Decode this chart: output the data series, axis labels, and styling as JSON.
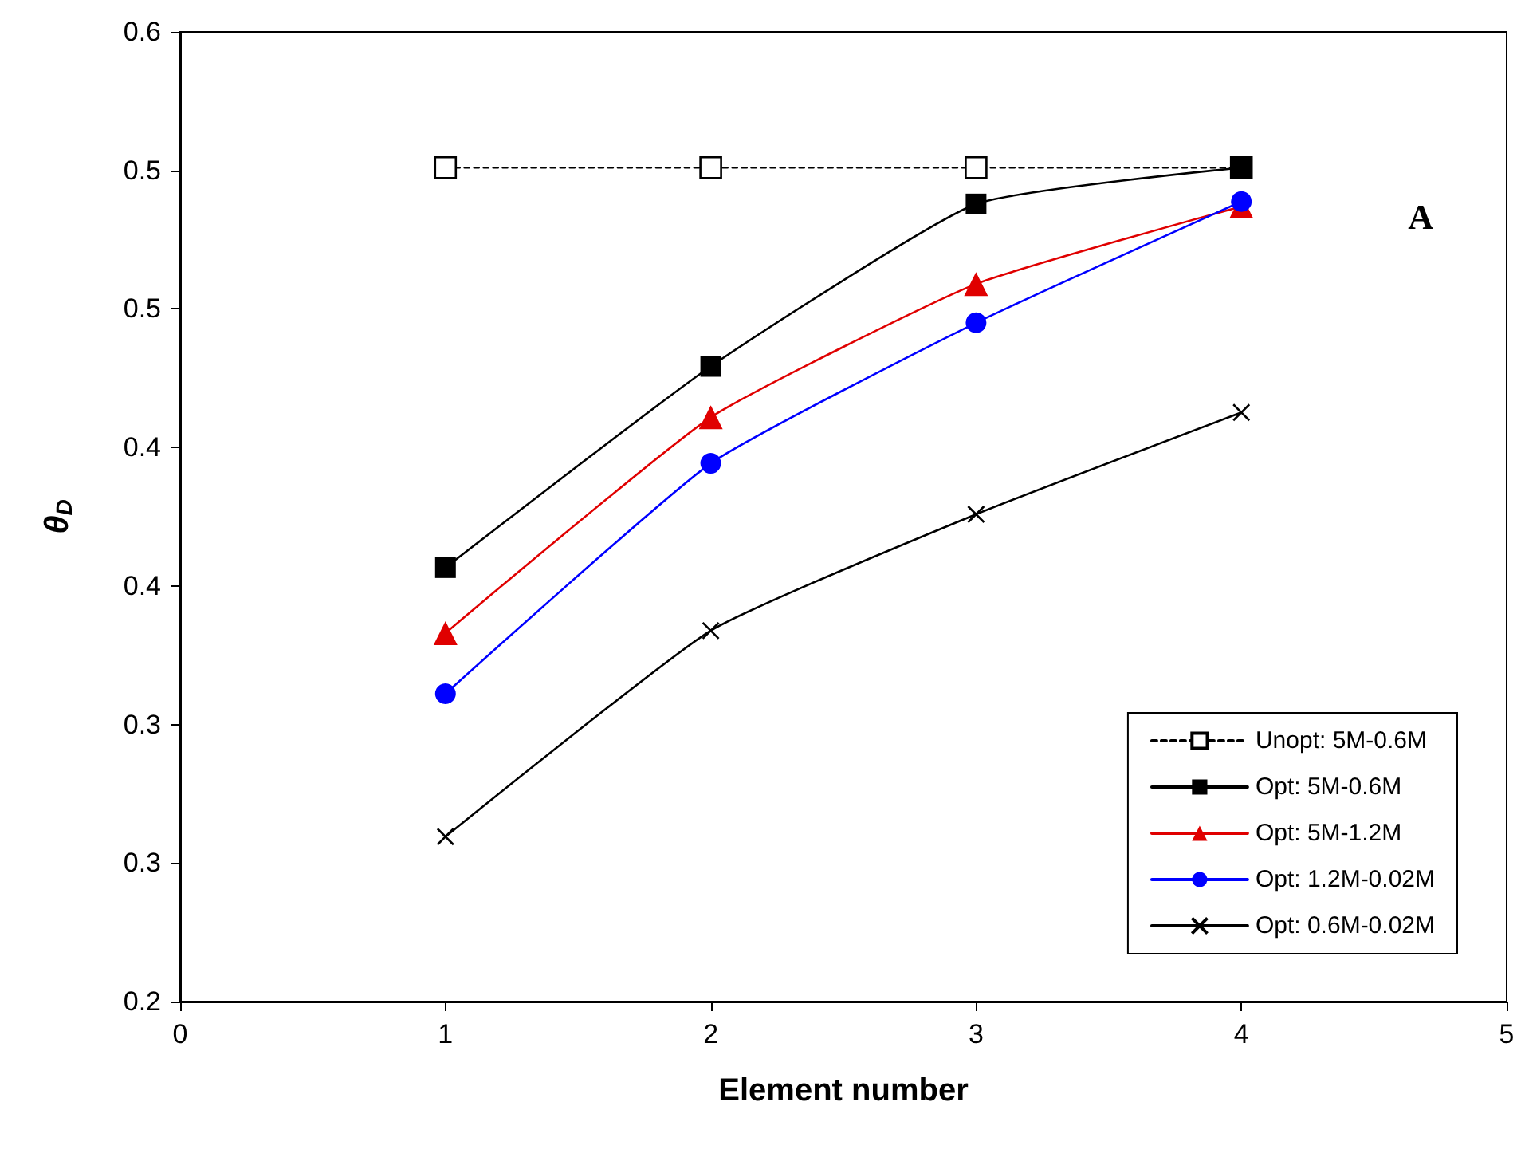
{
  "chart_data": {
    "type": "line",
    "xlabel": "Element number",
    "ylabel": "θ$_{D}$",
    "x": [
      1,
      2,
      3,
      4
    ],
    "xlim": [
      0,
      5
    ],
    "xticks": [
      0,
      1,
      2,
      3,
      4,
      5
    ],
    "ylim": [
      0.2,
      0.6
    ],
    "yticks": [
      0.2,
      {
        "value": 0.2571,
        "label": "0.3"
      },
      {
        "value": 0.3143,
        "label": "0.3"
      },
      {
        "value": 0.3714,
        "label": "0.4"
      },
      {
        "value": 0.4286,
        "label": "0.4"
      },
      {
        "value": 0.4857,
        "label": "0.5"
      },
      {
        "value": 0.5429,
        "label": "0.5"
      },
      0.6
    ],
    "grid": false,
    "legend": "bottom right",
    "annotations": [
      "A"
    ],
    "series": [
      {
        "name": "Unopt: 5M-0.6M",
        "color": "#000000",
        "values": [
          0.544,
          0.544,
          0.544,
          0.544
        ],
        "marker": "square",
        "line_style": "dotted"
      },
      {
        "name": "Opt: 5M-0.6M",
        "color": "#000000",
        "values": [
          0.379,
          0.462,
          0.529,
          0.544
        ],
        "marker": "square",
        "line_style": "solid"
      },
      {
        "name": "Opt: 5M-1.2M",
        "color": "#e00000",
        "values": [
          0.352,
          0.441,
          0.496,
          0.528
        ],
        "marker": "triangle",
        "line_style": "solid"
      },
      {
        "name": "Opt: 1.2M-0.02M",
        "color": "#0000ff",
        "values": [
          0.327,
          0.422,
          0.48,
          0.53
        ],
        "marker": "circle",
        "line_style": "solid"
      },
      {
        "name": "Opt: 0.6M-0.02M",
        "color": "#000000",
        "values": [
          0.268,
          0.353,
          0.401,
          0.443
        ],
        "marker": "cross",
        "line_style": "solid"
      }
    ]
  }
}
